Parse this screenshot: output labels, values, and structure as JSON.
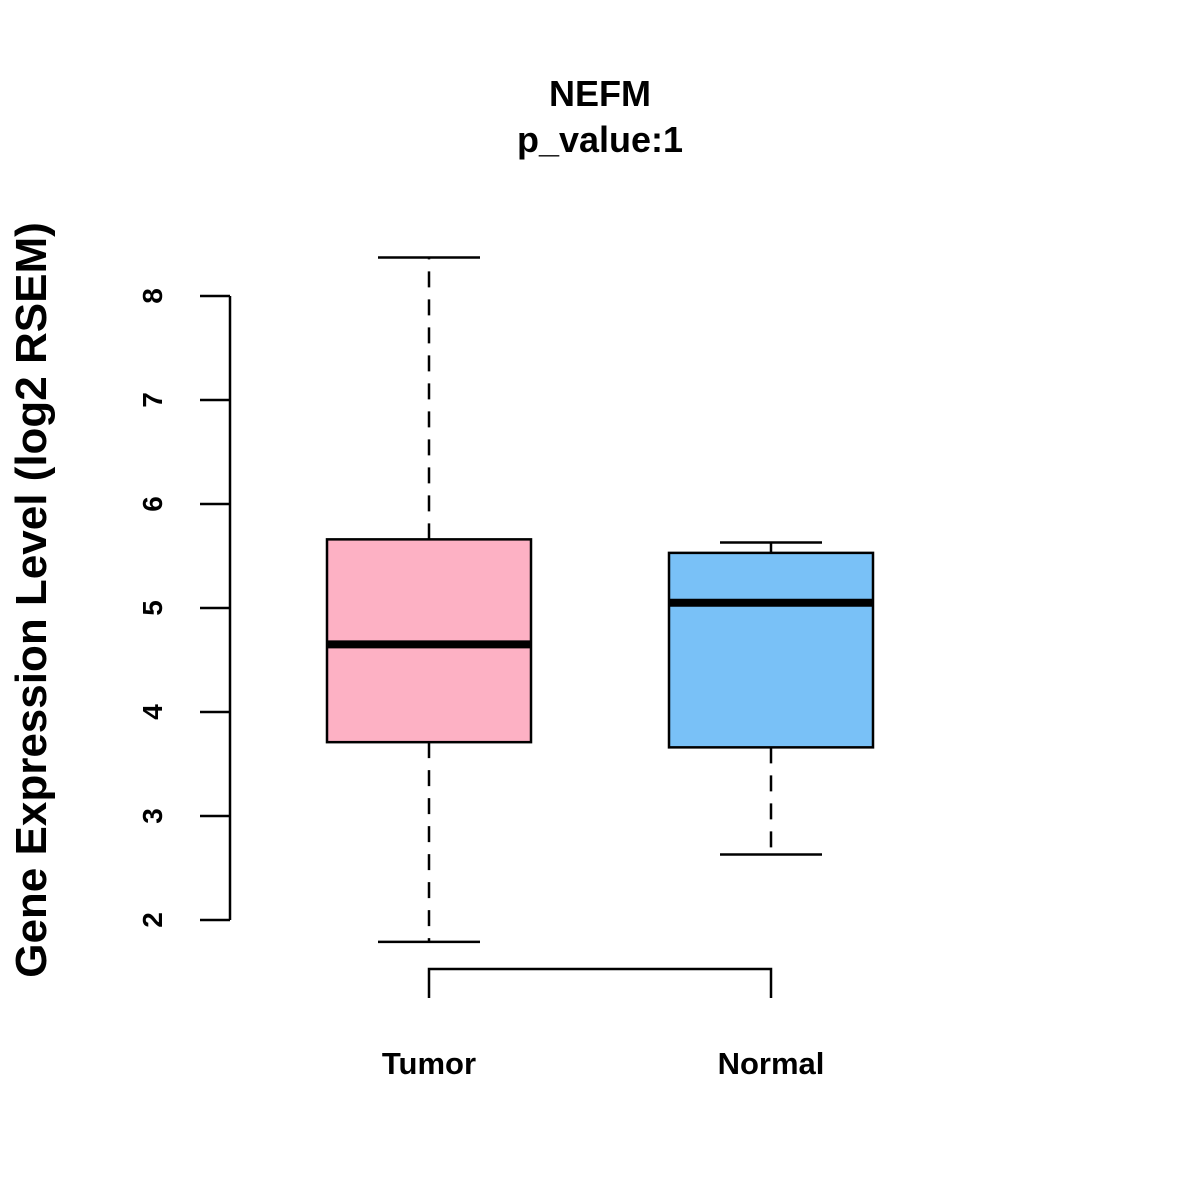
{
  "chart_data": {
    "type": "box",
    "title": "NEFM",
    "subtitle": "p_value:1",
    "ylabel": "Gene Expression Level (log2 RSEM)",
    "xlabel": "",
    "ylim": [
      2,
      8
    ],
    "yticks": [
      "2",
      "3",
      "4",
      "5",
      "6",
      "7",
      "8"
    ],
    "categories": [
      "Tumor",
      "Normal"
    ],
    "series": [
      {
        "category": "Tumor",
        "whisker_low": 1.79,
        "q1": 3.71,
        "median": 4.65,
        "q3": 5.66,
        "whisker_high": 8.37,
        "color": "#fdb1c4"
      },
      {
        "category": "Normal",
        "whisker_low": 2.63,
        "q1": 3.66,
        "median": 5.05,
        "q3": 5.53,
        "whisker_high": 5.63,
        "color": "#79c1f7"
      }
    ],
    "comparison_bracket": [
      "Tumor",
      "Normal"
    ]
  }
}
